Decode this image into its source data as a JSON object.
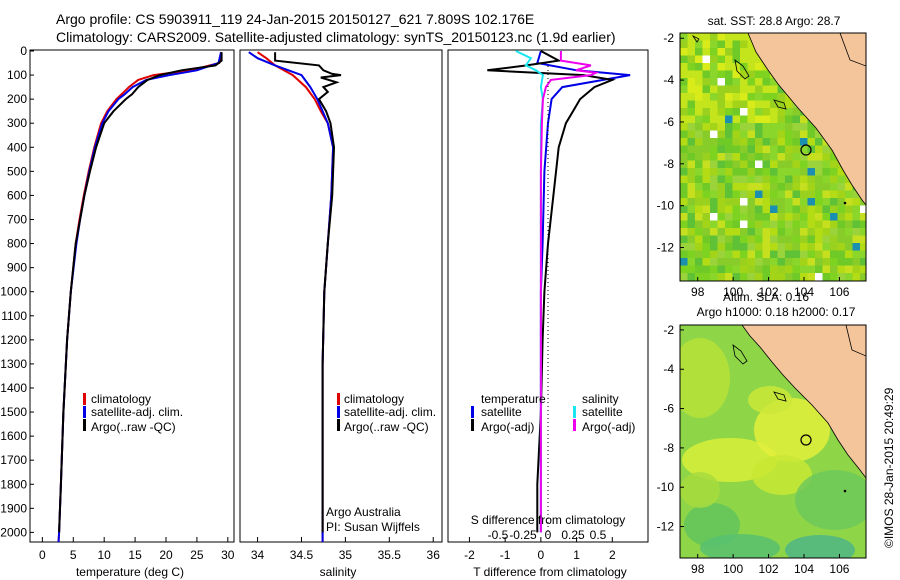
{
  "header": {
    "line1": "Argo profile: CS 5903911_119 24-Jan-2015 20150127_621 7.809S 102.176E",
    "line2": "Climatology: CARS2009. Satellite-adjusted climatology: synTS_20150123.nc (1.9d earlier)"
  },
  "colors": {
    "climatology": "#e00000",
    "satellite": "#0000e6",
    "argo": "#000000",
    "sat_salinity": "#19e6f0",
    "argo_salinity_adj": "#ee00ee",
    "land": "#f4c49a"
  },
  "depth_ticks": [
    "0",
    "100",
    "200",
    "300",
    "400",
    "500",
    "600",
    "700",
    "800",
    "900",
    "1000",
    "1100",
    "1200",
    "1300",
    "1400",
    "1500",
    "1600",
    "1700",
    "1800",
    "1900",
    "2000"
  ],
  "panels": {
    "temperature": {
      "xlabel": "temperature (deg C)",
      "xticks": [
        "0",
        "5",
        "10",
        "15",
        "20",
        "25",
        "30"
      ],
      "legend": [
        "climatology",
        "satellite-adj. clim.",
        "Argo(..raw -QC)"
      ]
    },
    "salinity": {
      "xlabel": "salinity",
      "xticks": [
        "34",
        "34.5",
        "35",
        "35.5",
        "36"
      ],
      "legend": [
        "climatology",
        "satellite-adj. clim.",
        "Argo(..raw -QC)"
      ],
      "note1": "Argo Australia",
      "note2": "PI: Susan Wijffels"
    },
    "difference": {
      "xlabel": "T difference from climatology",
      "xticks": [
        "-2",
        "-1",
        "0",
        "1",
        "2"
      ],
      "top_label": "S difference from climatology",
      "top_ticks": [
        "-0.5",
        "-0.25",
        "0",
        "0.25",
        "0.5"
      ],
      "legend_temp_title": "temperature",
      "legend_sal_title": "salinity",
      "legend_temp": [
        "satellite",
        "Argo(-adj)"
      ],
      "legend_sal": [
        "satellite",
        "Argo(-adj)"
      ]
    }
  },
  "maps": {
    "sst": {
      "title": "sat. SST: 28.8 Argo: 28.7",
      "yticks": [
        "-2",
        "-4",
        "-6",
        "-8",
        "-10",
        "-12"
      ],
      "xticks": [
        "98",
        "100",
        "102",
        "104",
        "106"
      ]
    },
    "sla": {
      "title1": "Altim. SLA: 0.16",
      "title2": "Argo h1000: 0.18 h2000: 0.17",
      "yticks": [
        "-2",
        "-4",
        "-6",
        "-8",
        "-10",
        "-12"
      ],
      "xticks": [
        "98",
        "100",
        "102",
        "104",
        "106"
      ]
    }
  },
  "credit": "©IMOS 28-Jan-2015 20:49:29",
  "chart_data": [
    {
      "type": "line",
      "title": "",
      "xlabel": "temperature (deg C)",
      "ylabel": "",
      "xlim": [
        -2,
        31
      ],
      "ylim": [
        2060,
        0
      ],
      "series": [
        {
          "name": "climatology",
          "depth": [
            5,
            50,
            80,
            100,
            120,
            150,
            180,
            200,
            250,
            300,
            400,
            500,
            600,
            700,
            800,
            1000,
            1200,
            1500,
            1800,
            2000,
            2050
          ],
          "values": [
            29.0,
            28.6,
            24.0,
            18.0,
            15.5,
            14.0,
            12.8,
            12.0,
            10.5,
            9.5,
            8.4,
            7.5,
            6.7,
            6.0,
            5.4,
            4.6,
            4.0,
            3.4,
            3.0,
            2.7,
            2.6
          ]
        },
        {
          "name": "satellite-adj. clim.",
          "depth": [
            5,
            50,
            80,
            100,
            120,
            150,
            180,
            200,
            250,
            300,
            400,
            500,
            600,
            700,
            800,
            1000,
            1200,
            1500,
            1800,
            2000,
            2050
          ],
          "values": [
            28.9,
            28.5,
            25.0,
            20.5,
            16.8,
            14.6,
            13.3,
            12.3,
            10.7,
            9.7,
            8.5,
            7.6,
            6.8,
            6.1,
            5.5,
            4.6,
            4.0,
            3.4,
            3.0,
            2.7,
            2.6
          ]
        },
        {
          "name": "Argo(..raw -QC)",
          "depth": [
            5,
            40,
            60,
            80,
            100,
            120,
            150,
            180,
            200,
            250,
            280,
            300,
            400,
            500,
            600,
            700,
            800,
            1000,
            1200,
            1500,
            1800,
            2000
          ],
          "values": [
            29.0,
            29.0,
            28.0,
            22.5,
            19.0,
            17.0,
            15.5,
            14.5,
            13.5,
            11.5,
            10.6,
            10.0,
            8.7,
            7.7,
            6.8,
            6.1,
            5.4,
            4.6,
            4.0,
            3.4,
            3.0,
            2.7
          ]
        }
      ]
    },
    {
      "type": "line",
      "title": "",
      "xlabel": "salinity",
      "ylabel": "",
      "xlim": [
        33.8,
        36.1
      ],
      "ylim": [
        2060,
        0
      ],
      "series": [
        {
          "name": "climatology",
          "depth": [
            5,
            30,
            60,
            100,
            150,
            200,
            250,
            300,
            400,
            600,
            800,
            1000,
            1300,
            1600,
            2000,
            2050
          ],
          "values": [
            34.0,
            34.1,
            34.2,
            34.4,
            34.55,
            34.65,
            34.72,
            34.8,
            34.86,
            34.84,
            34.8,
            34.76,
            34.74,
            34.74,
            34.74,
            34.74
          ]
        },
        {
          "name": "satellite-adj. clim.",
          "depth": [
            5,
            30,
            60,
            100,
            150,
            200,
            250,
            300,
            400,
            600,
            800,
            1000,
            1300,
            1600,
            2000,
            2050
          ],
          "values": [
            33.9,
            34.0,
            34.2,
            34.5,
            34.6,
            34.68,
            34.74,
            34.8,
            34.86,
            34.84,
            34.8,
            34.76,
            34.74,
            34.74,
            34.74,
            34.74
          ]
        },
        {
          "name": "Argo(..raw -QC)",
          "depth": [
            5,
            40,
            60,
            80,
            95,
            100,
            110,
            130,
            150,
            170,
            200,
            250,
            300,
            400,
            600,
            800,
            1000,
            1300,
            1600,
            1900,
            2000
          ],
          "values": [
            34.2,
            34.2,
            34.7,
            34.75,
            34.85,
            34.95,
            34.72,
            34.9,
            34.75,
            34.8,
            34.7,
            34.78,
            34.83,
            34.87,
            34.85,
            34.8,
            34.76,
            34.74,
            34.74,
            34.74,
            34.74
          ]
        }
      ]
    },
    {
      "type": "line",
      "title": "",
      "xlabel": "T difference from climatology",
      "ylabel": "",
      "xlim": [
        -2.6,
        3.0
      ],
      "ylim": [
        2060,
        0
      ],
      "series": [
        {
          "name": "temperature satellite",
          "depth": [
            0,
            50,
            80,
            100,
            150,
            200,
            300,
            500,
            800,
            1000,
            1500,
            2000
          ],
          "values": [
            0.0,
            -0.1,
            1.0,
            2.5,
            0.6,
            0.3,
            0.2,
            0.1,
            0.05,
            0.0,
            0.0,
            0.0
          ]
        },
        {
          "name": "temperature Argo(-adj)",
          "depth": [
            0,
            40,
            60,
            80,
            100,
            120,
            150,
            200,
            250,
            300,
            400,
            600,
            800,
            1000,
            1200,
            1500,
            1800,
            2000
          ],
          "values": [
            0.0,
            0.5,
            -0.4,
            -1.5,
            1.2,
            2.0,
            1.5,
            1.1,
            0.9,
            0.7,
            0.5,
            0.35,
            0.2,
            0.1,
            0.05,
            0.0,
            -0.1,
            -0.1
          ]
        },
        {
          "name": "salinity satellite",
          "depth": [
            0,
            30,
            60,
            80,
            100,
            150,
            200,
            300,
            500,
            800,
            1000,
            1500,
            2000
          ],
          "values": [
            -0.25,
            -0.1,
            -0.15,
            -0.05,
            0.02,
            0.0,
            0.02,
            0.0,
            0.0,
            0.0,
            0.0,
            0.0,
            0.0
          ]
        },
        {
          "name": "salinity Argo(-adj)",
          "depth": [
            0,
            40,
            60,
            80,
            90,
            100,
            120,
            150,
            200,
            300,
            500,
            800,
            1000,
            1500,
            2000
          ],
          "values": [
            0.2,
            0.2,
            0.5,
            0.35,
            0.55,
            0.5,
            0.1,
            0.05,
            0.02,
            0.01,
            0.0,
            0.0,
            0.0,
            0.0,
            0.0
          ]
        }
      ]
    }
  ]
}
